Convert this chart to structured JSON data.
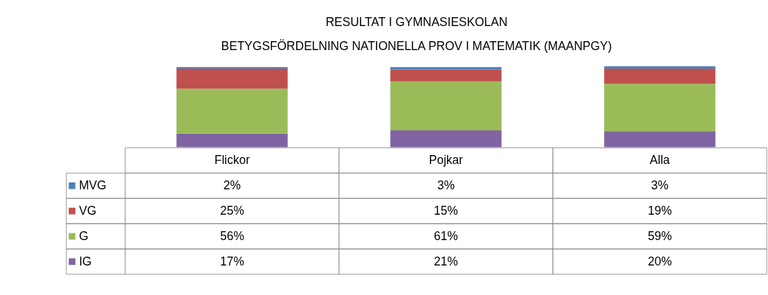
{
  "chart_data": {
    "type": "bar",
    "stacked": true,
    "legend": "bottom left",
    "title": [
      "RESULTAT I GYMNASIESKOLAN",
      "BETYGSFÖRDELNING NATIONELLA PROV I MATEMATIK (MAANPGY)"
    ],
    "categories": [
      "Flickor",
      "Pojkar",
      "Alla"
    ],
    "series": [
      {
        "name": "IG",
        "color": "#8064a2",
        "values": [
          17,
          21,
          20
        ],
        "value_labels": [
          "17%",
          "21%",
          "20%"
        ]
      },
      {
        "name": "G",
        "color": "#9bbb59",
        "values": [
          56,
          61,
          59
        ],
        "value_labels": [
          "56%",
          "61%",
          "59%"
        ]
      },
      {
        "name": "VG",
        "color": "#c0504d",
        "values": [
          25,
          15,
          19
        ],
        "value_labels": [
          "25%",
          "15%",
          "19%"
        ]
      },
      {
        "name": "MVG",
        "color": "#4f81bd",
        "values": [
          2,
          3,
          3
        ],
        "value_labels": [
          "2%",
          "3%",
          "3%"
        ]
      }
    ]
  }
}
